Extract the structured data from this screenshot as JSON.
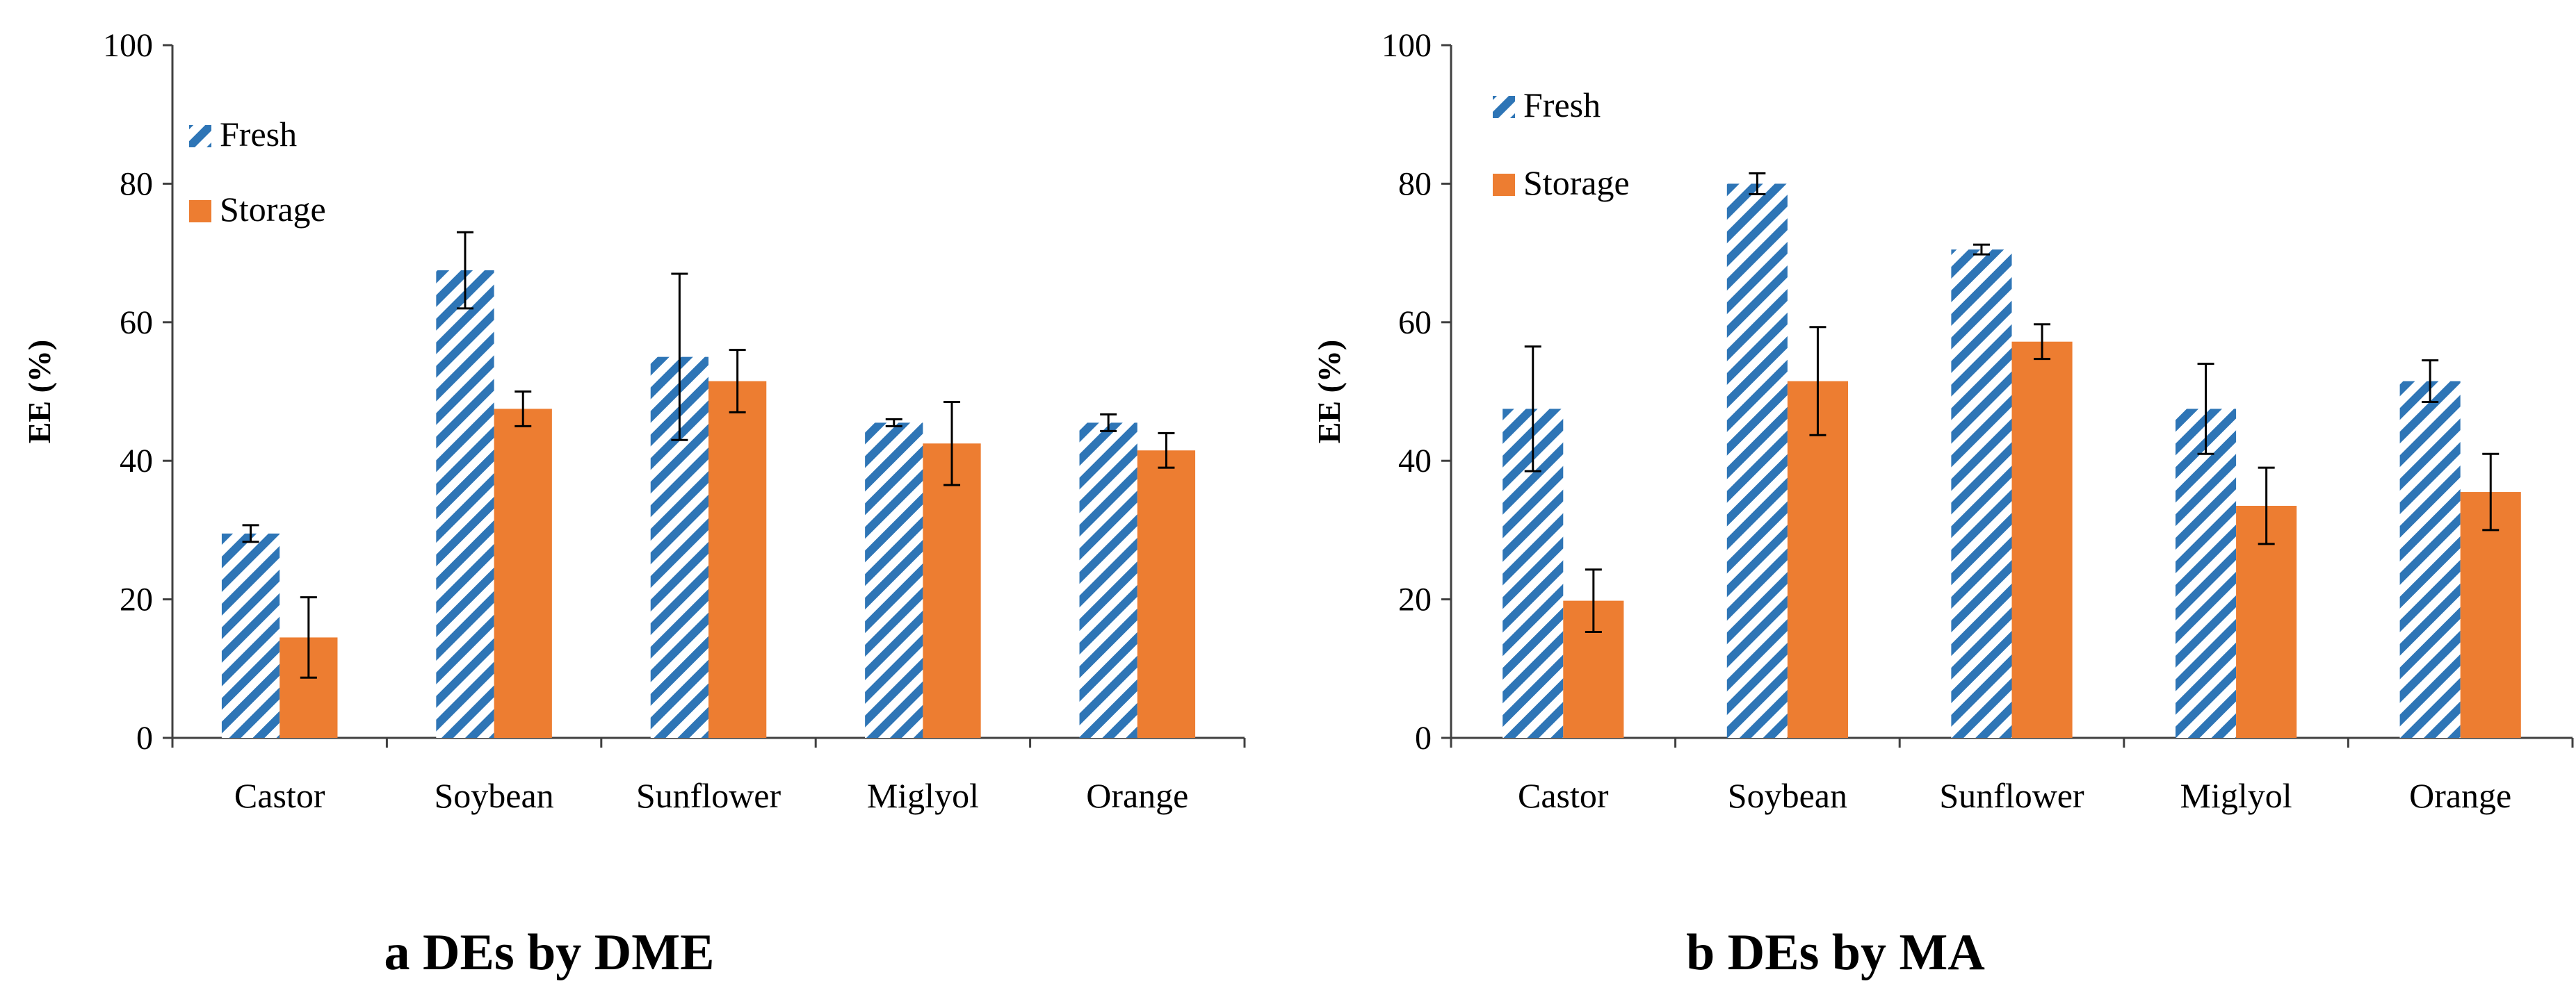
{
  "chart_data": [
    {
      "type": "bar",
      "caption": "a DEs by DME",
      "ylabel": "EE (%)",
      "xlabel": "",
      "ylim": [
        0,
        100
      ],
      "yticks": [
        0,
        20,
        40,
        60,
        80,
        100
      ],
      "categories": [
        "Castor",
        "Soybean",
        "Sunflower",
        "Miglyol",
        "Orange"
      ],
      "legend_position": "top-left",
      "series": [
        {
          "name": "Fresh",
          "style": "hatched",
          "color": "#2E75B6",
          "values": [
            29.5,
            67.5,
            55,
            45.5,
            45.5
          ],
          "errors": [
            1.2,
            5.5,
            12,
            0.5,
            1.2
          ]
        },
        {
          "name": "Storage",
          "style": "solid",
          "color": "#ED7D31",
          "values": [
            14.5,
            47.5,
            51.5,
            42.5,
            41.5
          ],
          "errors": [
            5.8,
            2.5,
            4.5,
            6,
            2.5
          ]
        }
      ]
    },
    {
      "type": "bar",
      "caption": "b DEs by MA",
      "ylabel": "EE (%)",
      "xlabel": "",
      "ylim": [
        0,
        100
      ],
      "yticks": [
        0,
        20,
        40,
        60,
        80,
        100
      ],
      "categories": [
        "Castor",
        "Soybean",
        "Sunflower",
        "Miglyol",
        "Orange"
      ],
      "legend_position": "top-left",
      "series": [
        {
          "name": "Fresh",
          "style": "hatched",
          "color": "#2E75B6",
          "values": [
            47.5,
            80,
            70.5,
            47.5,
            51.5
          ],
          "errors": [
            9,
            1.5,
            0.7,
            6.5,
            3
          ]
        },
        {
          "name": "Storage",
          "style": "solid",
          "color": "#ED7D31",
          "values": [
            19.8,
            51.5,
            57.2,
            33.5,
            35.5
          ],
          "errors": [
            4.5,
            7.8,
            2.5,
            5.5,
            5.5
          ]
        }
      ]
    }
  ]
}
